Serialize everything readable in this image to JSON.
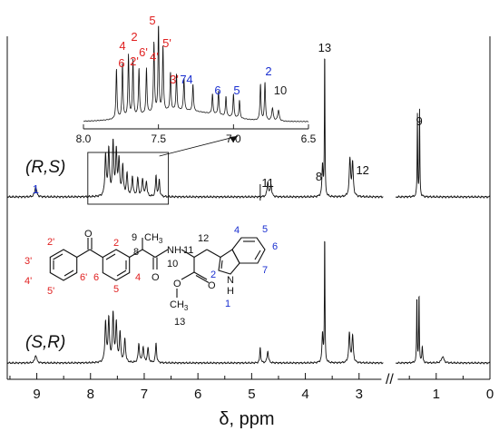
{
  "chart_data": {
    "type": "line",
    "title": "",
    "xlabel": "δ, ppm",
    "ylabel": "",
    "x_axis": {
      "range": [
        9.55,
        0
      ],
      "reversed": true,
      "break_between": [
        2.55,
        1.75
      ],
      "break_symbol": "//",
      "tick_labels": [
        "9",
        "8",
        "7",
        "6",
        "5",
        "4",
        "3",
        "1",
        "0"
      ]
    },
    "series": [
      {
        "name": "(R,S)",
        "label_display": "(R,S)",
        "peaks": [
          {
            "ppm": 9.02,
            "height": 0.07,
            "width": 0.04,
            "label": "1",
            "label_color": "#1a2fd0"
          },
          {
            "ppm": 7.72,
            "height": 0.27,
            "width": 0.03
          },
          {
            "ppm": 7.66,
            "height": 0.31,
            "width": 0.03
          },
          {
            "ppm": 7.58,
            "height": 0.35,
            "width": 0.03
          },
          {
            "ppm": 7.52,
            "height": 0.29,
            "width": 0.03
          },
          {
            "ppm": 7.47,
            "height": 0.24,
            "width": 0.03
          },
          {
            "ppm": 7.4,
            "height": 0.2,
            "width": 0.03
          },
          {
            "ppm": 7.32,
            "height": 0.15,
            "width": 0.03
          },
          {
            "ppm": 7.22,
            "height": 0.13,
            "width": 0.03
          },
          {
            "ppm": 7.12,
            "height": 0.12,
            "width": 0.03
          },
          {
            "ppm": 7.03,
            "height": 0.12,
            "width": 0.03
          },
          {
            "ppm": 6.96,
            "height": 0.1,
            "width": 0.03
          },
          {
            "ppm": 6.78,
            "height": 0.14,
            "width": 0.025
          },
          {
            "ppm": 6.72,
            "height": 0.11,
            "width": 0.025
          },
          {
            "ppm": 4.7,
            "height": 0.1,
            "width": 0.03,
            "label": "11"
          },
          {
            "ppm": 4.64,
            "height": 0.08,
            "width": 0.03
          },
          {
            "ppm": 3.68,
            "height": 0.21,
            "width": 0.025,
            "label": "8"
          },
          {
            "ppm": 3.64,
            "height": 1.0,
            "width": 0.012,
            "label": "13"
          },
          {
            "ppm": 3.17,
            "height": 0.25,
            "width": 0.03,
            "label": "12"
          },
          {
            "ppm": 3.12,
            "height": 0.22,
            "width": 0.03
          },
          {
            "ppm": 1.35,
            "height": 0.55,
            "width": 0.012,
            "label": "9"
          },
          {
            "ppm": 1.31,
            "height": 0.57,
            "width": 0.012
          }
        ]
      },
      {
        "name": "(S,R)",
        "label_display": "(S,R)",
        "peaks": [
          {
            "ppm": 9.02,
            "height": 0.06,
            "width": 0.04
          },
          {
            "ppm": 7.72,
            "height": 0.3,
            "width": 0.03
          },
          {
            "ppm": 7.66,
            "height": 0.33,
            "width": 0.03
          },
          {
            "ppm": 7.58,
            "height": 0.36,
            "width": 0.03
          },
          {
            "ppm": 7.52,
            "height": 0.29,
            "width": 0.03
          },
          {
            "ppm": 7.45,
            "height": 0.22,
            "width": 0.03
          },
          {
            "ppm": 7.36,
            "height": 0.18,
            "width": 0.03
          },
          {
            "ppm": 7.1,
            "height": 0.14,
            "width": 0.03
          },
          {
            "ppm": 7.02,
            "height": 0.12,
            "width": 0.03
          },
          {
            "ppm": 6.93,
            "height": 0.11,
            "width": 0.03
          },
          {
            "ppm": 6.78,
            "height": 0.15,
            "width": 0.025
          },
          {
            "ppm": 4.84,
            "height": 0.12,
            "width": 0.02
          },
          {
            "ppm": 4.7,
            "height": 0.09,
            "width": 0.03
          },
          {
            "ppm": 3.68,
            "height": 0.22,
            "width": 0.025
          },
          {
            "ppm": 3.64,
            "height": 1.0,
            "width": 0.012
          },
          {
            "ppm": 3.18,
            "height": 0.22,
            "width": 0.03
          },
          {
            "ppm": 3.12,
            "height": 0.2,
            "width": 0.03
          },
          {
            "ppm": 1.36,
            "height": 0.52,
            "width": 0.012
          },
          {
            "ppm": 1.32,
            "height": 0.54,
            "width": 0.012
          },
          {
            "ppm": 1.26,
            "height": 0.12,
            "width": 0.02
          },
          {
            "ppm": 0.88,
            "height": 0.05,
            "width": 0.05
          }
        ]
      }
    ],
    "inset": {
      "x_range": [
        8.0,
        6.5
      ],
      "tick_labels": [
        "8.0",
        "7.5",
        "7.0",
        "6.5"
      ],
      "peaks": [
        {
          "ppm": 7.78,
          "height": 0.55,
          "width": 0.008
        },
        {
          "ppm": 7.74,
          "height": 0.6,
          "width": 0.008
        },
        {
          "ppm": 7.7,
          "height": 0.68,
          "width": 0.008
        },
        {
          "ppm": 7.67,
          "height": 0.62,
          "width": 0.008
        },
        {
          "ppm": 7.63,
          "height": 0.52,
          "width": 0.008
        },
        {
          "ppm": 7.58,
          "height": 0.5,
          "width": 0.008
        },
        {
          "ppm": 7.53,
          "height": 0.78,
          "width": 0.008
        },
        {
          "ppm": 7.5,
          "height": 1.0,
          "width": 0.007
        },
        {
          "ppm": 7.47,
          "height": 0.72,
          "width": 0.008
        },
        {
          "ppm": 7.42,
          "height": 0.42,
          "width": 0.008
        },
        {
          "ppm": 7.38,
          "height": 0.4,
          "width": 0.008
        },
        {
          "ppm": 7.33,
          "height": 0.36,
          "width": 0.008
        },
        {
          "ppm": 7.27,
          "height": 0.3,
          "width": 0.008
        },
        {
          "ppm": 7.14,
          "height": 0.22,
          "width": 0.008
        },
        {
          "ppm": 7.1,
          "height": 0.26,
          "width": 0.008
        },
        {
          "ppm": 7.05,
          "height": 0.22,
          "width": 0.008
        },
        {
          "ppm": 7.0,
          "height": 0.26,
          "width": 0.008
        },
        {
          "ppm": 6.96,
          "height": 0.2,
          "width": 0.008
        },
        {
          "ppm": 6.82,
          "height": 0.4,
          "width": 0.008
        },
        {
          "ppm": 6.79,
          "height": 0.42,
          "width": 0.008
        },
        {
          "ppm": 6.74,
          "height": 0.14,
          "width": 0.012
        },
        {
          "ppm": 6.7,
          "height": 0.12,
          "width": 0.012
        }
      ],
      "labels": [
        {
          "text": "6",
          "color": "#e02020",
          "ppm": 7.79,
          "level": 0
        },
        {
          "text": "4",
          "color": "#e02020",
          "ppm": 7.75,
          "level": 1
        },
        {
          "text": "2",
          "color": "#e02020",
          "ppm": 7.68,
          "level": 2
        },
        {
          "text": "2'",
          "color": "#e02020",
          "ppm": 7.66,
          "level": -1
        },
        {
          "text": "6'",
          "color": "#e02020",
          "ppm": 7.62,
          "level": 0.5
        },
        {
          "text": "4'",
          "color": "#e02020",
          "ppm": 7.58,
          "level": -1
        },
        {
          "text": "5",
          "color": "#e02020",
          "ppm": 7.53,
          "level": 3
        },
        {
          "text": "5'",
          "color": "#e02020",
          "ppm": 7.47,
          "level": 1.5
        },
        {
          "text": "3'",
          "color": "#e02020",
          "ppm": 7.41,
          "level": -3
        },
        {
          "text": "7",
          "color": "#1a2fd0",
          "ppm": 7.35,
          "level": -4
        },
        {
          "text": "4",
          "color": "#1a2fd0",
          "ppm": 7.29,
          "level": -4
        },
        {
          "text": "6",
          "color": "#1a2fd0",
          "ppm": 7.1,
          "level": -5
        },
        {
          "text": "5",
          "color": "#1a2fd0",
          "ppm": 6.99,
          "level": -5
        },
        {
          "text": "2",
          "color": "#1a2fd0",
          "ppm": 6.8,
          "level": -2
        },
        {
          "text": "10",
          "color": "#222222",
          "ppm": 6.7,
          "level": -6
        }
      ]
    }
  },
  "structure": {
    "atom_labels_red": [
      "2'",
      "3'",
      "4'",
      "5'",
      "6'",
      "2",
      "4",
      "5",
      "6"
    ],
    "atom_labels_blue": [
      "1",
      "2",
      "4",
      "5",
      "6",
      "7"
    ],
    "atom_labels_black": [
      "8",
      "9",
      "10",
      "11",
      "12",
      "13"
    ],
    "text_O_ketone": "O",
    "text_CH3_top": "CH",
    "text_CH3_top_sub": "3",
    "text_NH": "NH",
    "text_O_amide": "O",
    "text_O_ester1": "O",
    "text_O_ester2": "O",
    "text_CH3_bottom": "CH",
    "text_CH3_bottom_sub": "3",
    "text_indole_N": "N",
    "text_indole_H": "H"
  },
  "colors": {
    "red": "#e02020",
    "blue": "#1a2fd0",
    "line": "#111111"
  }
}
